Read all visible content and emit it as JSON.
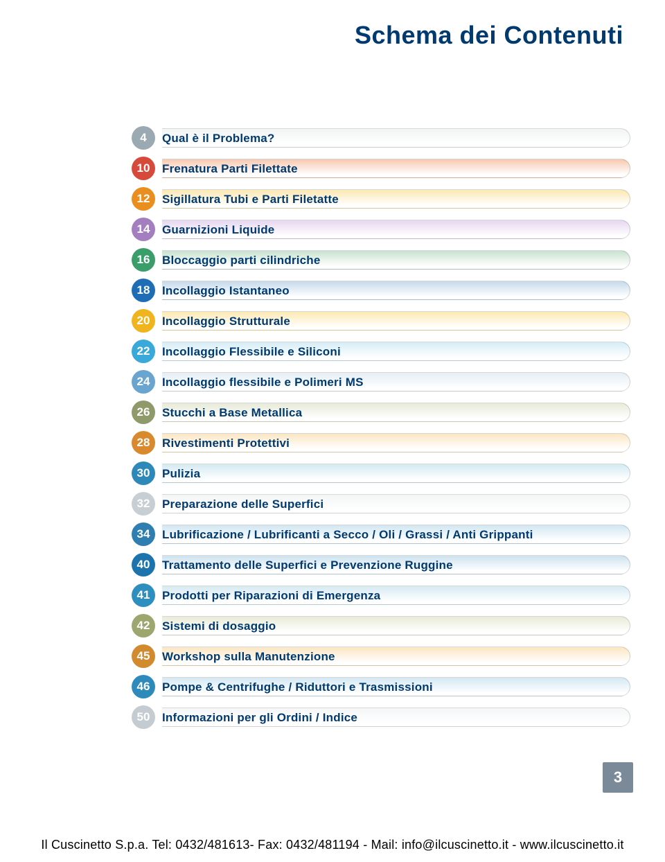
{
  "title": "Schema dei Contenuti",
  "text_color": "#003a6f",
  "page_number": "3",
  "pagebox_bg": "#7b8a99",
  "footer": "Il Cuscinetto S.p.a. Tel: 0432/481613- Fax: 0432/481194 - Mail: info@ilcuscinetto.it - www.ilcuscinetto.it",
  "items": [
    {
      "num": "4",
      "label": "Qual è il Problema?",
      "badge_bg": "#9aa9b2",
      "pill_bg": "#f1f3f4"
    },
    {
      "num": "10",
      "label": "Frenatura Parti Filettate",
      "badge_bg": "#d54a3a",
      "pill_bg": "#f6c9b1"
    },
    {
      "num": "12",
      "label": "Sigillatura Tubi e Parti Filetatte",
      "badge_bg": "#e98f1f",
      "pill_bg": "#fbe7b2"
    },
    {
      "num": "14",
      "label": "Guarnizioni Liquide",
      "badge_bg": "#a47fc0",
      "pill_bg": "#e6d6ef"
    },
    {
      "num": "16",
      "label": "Bloccaggio parti cilindriche",
      "badge_bg": "#3a9d6a",
      "pill_bg": "#c9e2cf"
    },
    {
      "num": "18",
      "label": "Incollaggio Istantaneo",
      "badge_bg": "#1e6db5",
      "pill_bg": "#c6d9ea"
    },
    {
      "num": "20",
      "label": "Incollaggio Strutturale",
      "badge_bg": "#f0b41e",
      "pill_bg": "#fde8b2"
    },
    {
      "num": "22",
      "label": "Incollaggio Flessibile e Siliconi",
      "badge_bg": "#3aa8d8",
      "pill_bg": "#d6edf6"
    },
    {
      "num": "24",
      "label": "Incollaggio flessibile e  Polimeri MS",
      "badge_bg": "#6aa5cf",
      "pill_bg": "#e4eef5"
    },
    {
      "num": "26",
      "label": "Stucchi a Base Metallica",
      "badge_bg": "#8f9a6a",
      "pill_bg": "#e7e9d8"
    },
    {
      "num": "28",
      "label": "Rivestimenti Protettivi",
      "badge_bg": "#d98a2e",
      "pill_bg": "#fbe6c4"
    },
    {
      "num": "30",
      "label": "Pulizia",
      "badge_bg": "#2e88b8",
      "pill_bg": "#d4e9f2"
    },
    {
      "num": "32",
      "label": "Preparazione delle Superfici",
      "badge_bg": "#c8cfd4",
      "pill_bg": "#f3f5f6"
    },
    {
      "num": "34",
      "label": "Lubrificazione / Lubrificanti a Secco / Oli / Grassi / Anti Grippanti",
      "badge_bg": "#2e7fb0",
      "pill_bg": "#d2e6f1"
    },
    {
      "num": "40",
      "label": "Trattamento delle Superfici e Prevenzione Ruggine",
      "badge_bg": "#1d74ac",
      "pill_bg": "#cde2ee"
    },
    {
      "num": "41",
      "label": "Prodotti per Riparazioni di Emergenza",
      "badge_bg": "#2e8fbf",
      "pill_bg": "#d6eaf3"
    },
    {
      "num": "42",
      "label": "Sistemi di dosaggio",
      "badge_bg": "#9da66f",
      "pill_bg": "#e9ebd7"
    },
    {
      "num": "45",
      "label": "Workshop sulla Manutenzione",
      "badge_bg": "#d28a2e",
      "pill_bg": "#fbe6c4"
    },
    {
      "num": "46",
      "label": "Pompe & Centrifughe / Riduttori e Trasmissioni",
      "badge_bg": "#2f8abc",
      "pill_bg": "#d4e8f2"
    },
    {
      "num": "50",
      "label": "Informazioni per gli Ordini / Indice",
      "badge_bg": "#c4ccd1",
      "pill_bg": "#f4f6f7"
    }
  ]
}
